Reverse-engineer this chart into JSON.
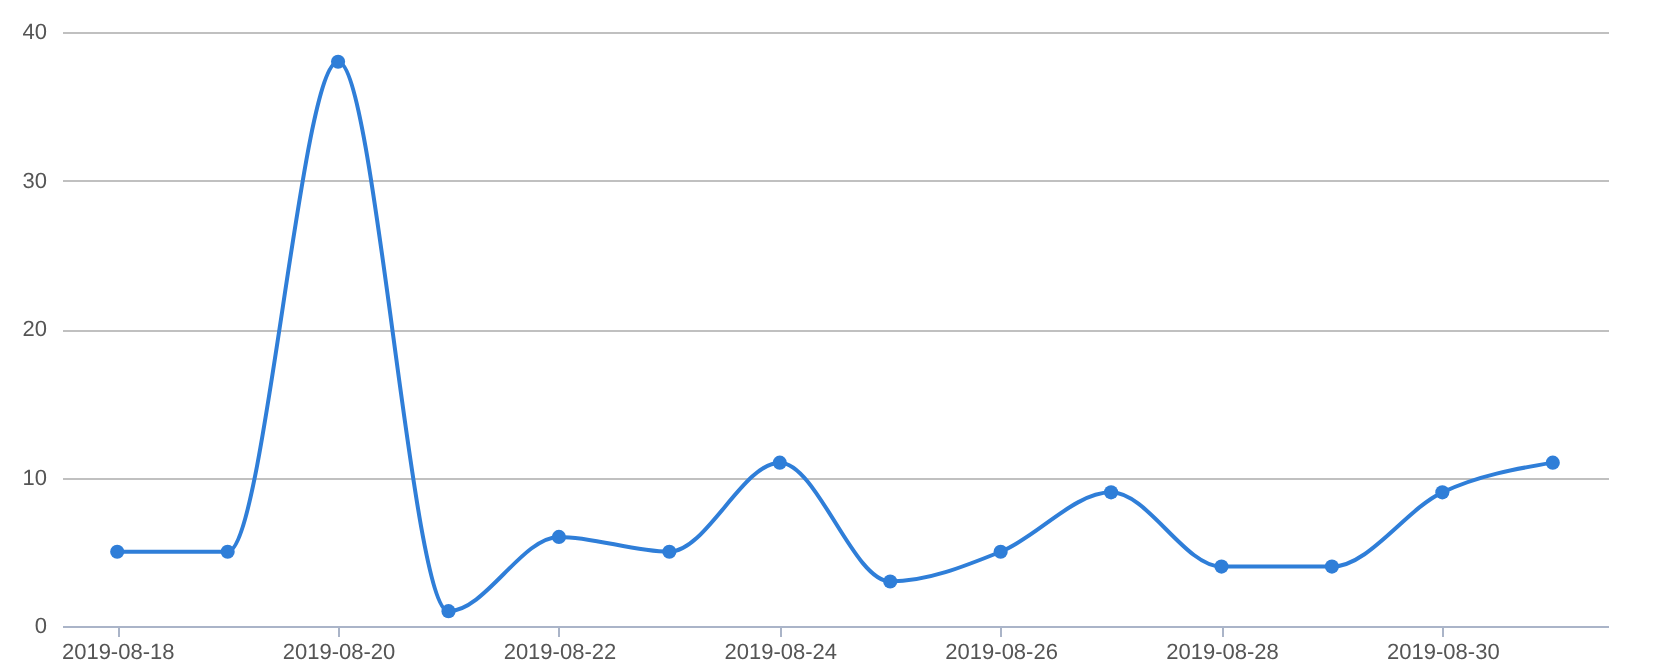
{
  "chart_data": {
    "type": "line",
    "x": [
      "2019-08-18",
      "2019-08-19",
      "2019-08-20",
      "2019-08-21",
      "2019-08-22",
      "2019-08-23",
      "2019-08-24",
      "2019-08-25",
      "2019-08-26",
      "2019-08-27",
      "2019-08-28",
      "2019-08-29",
      "2019-08-30",
      "2019-08-31"
    ],
    "series": [
      {
        "color": "#2f7ed8",
        "values": [
          5,
          5,
          38,
          1,
          6,
          5,
          11,
          3,
          5,
          9,
          4,
          4,
          9,
          11
        ]
      }
    ],
    "xlim": [
      "2019-08-17T12:00",
      "2019-08-31T12:00"
    ],
    "xticks": [
      "2019-08-18",
      "2019-08-20",
      "2019-08-22",
      "2019-08-24",
      "2019-08-26",
      "2019-08-28",
      "2019-08-30"
    ],
    "ylim": [
      0,
      40
    ],
    "yticks": [
      0,
      10,
      20,
      30,
      40
    ],
    "grid": "y",
    "marker": "circle",
    "line_style": "solid"
  }
}
